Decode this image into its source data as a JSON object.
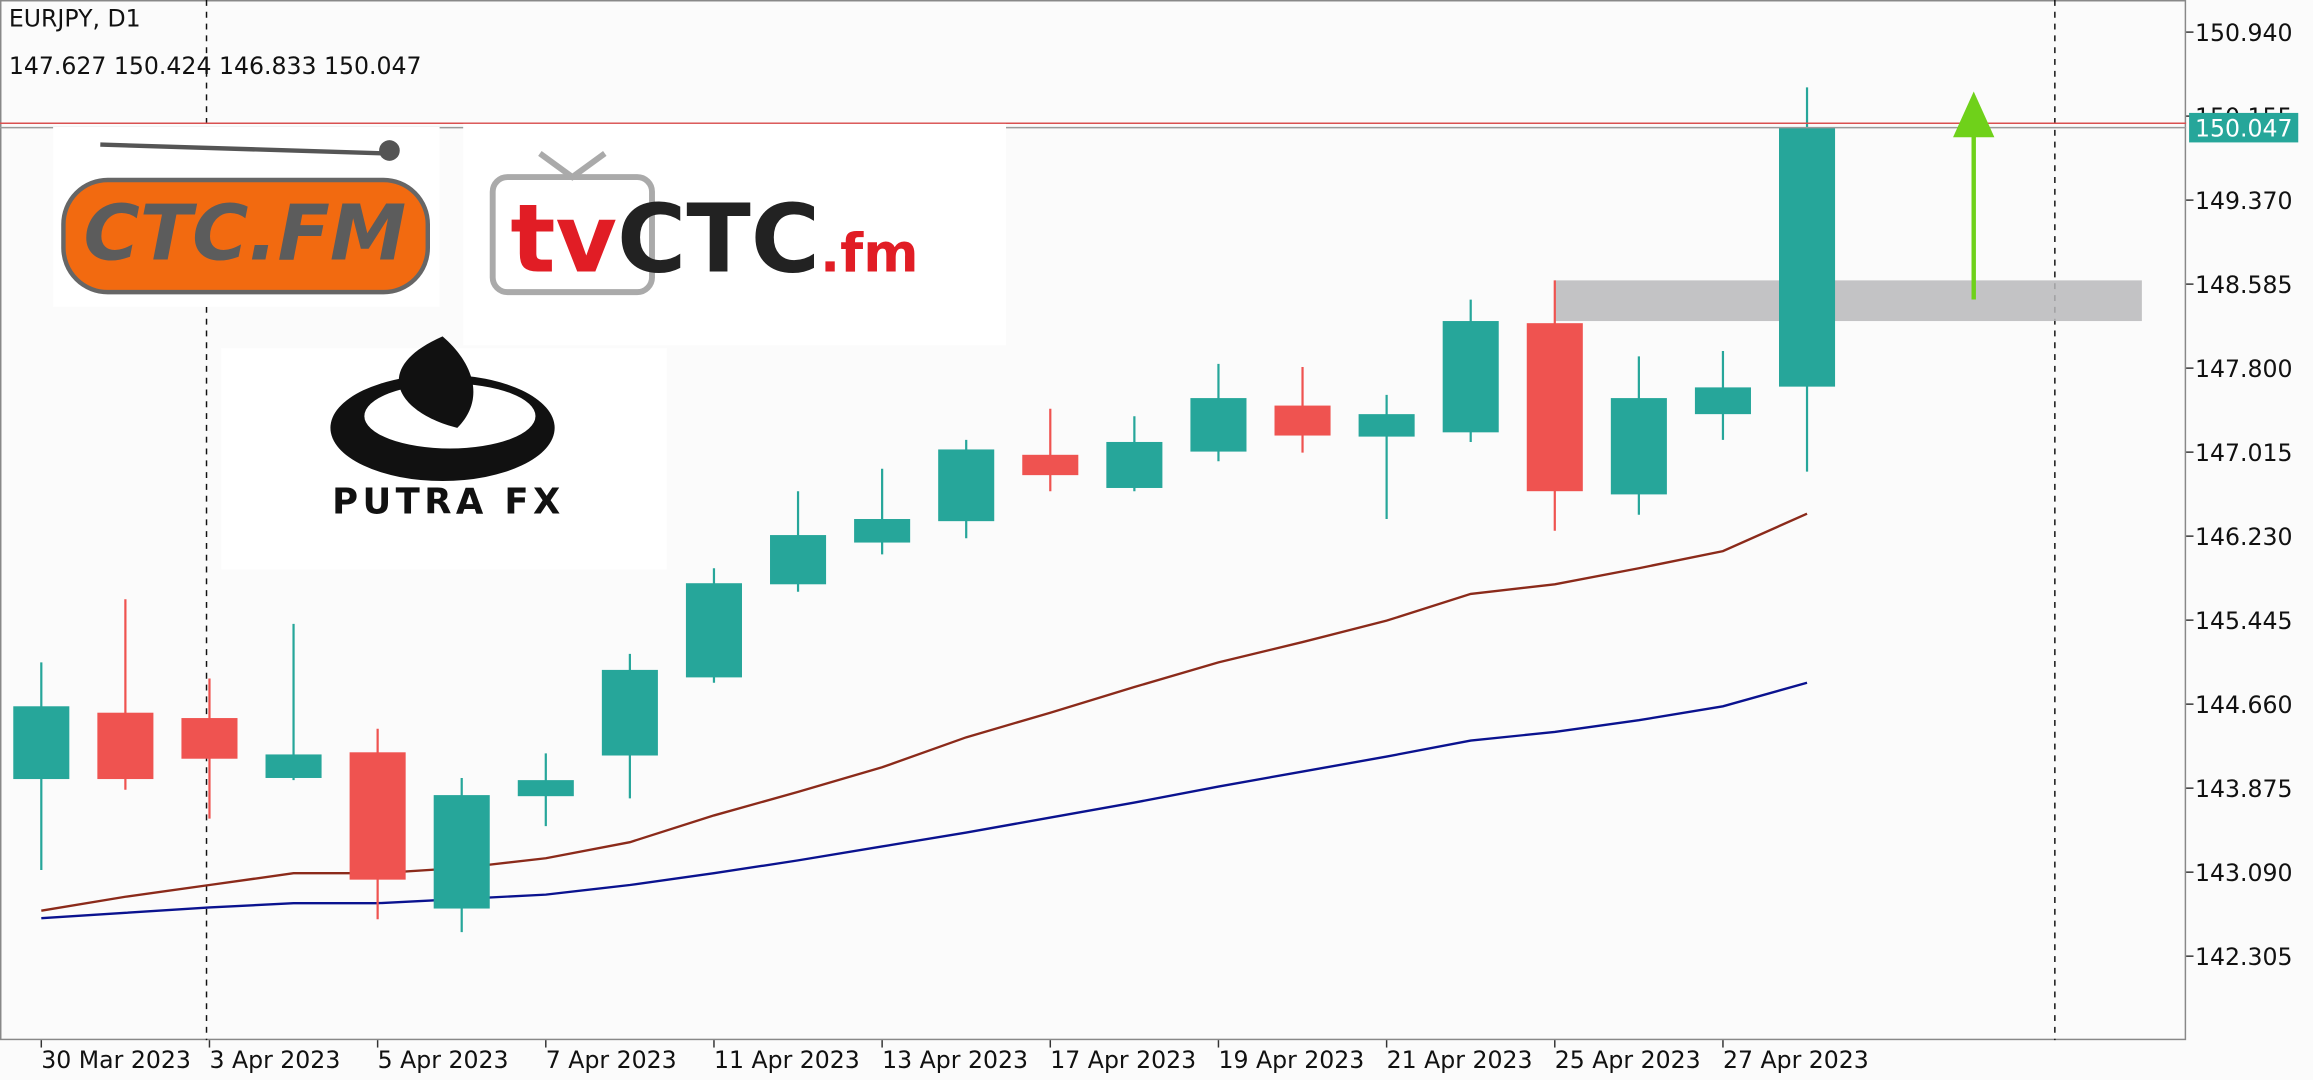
{
  "chart_data": {
    "type": "candlestick",
    "title": "EURJPY, D1",
    "subtitle": "147.627 150.424 146.833 150.047",
    "categories": [
      "30 Mar 2023",
      null,
      "3 Apr 2023",
      null,
      "5 Apr 2023",
      null,
      "7 Apr 2023",
      null,
      "11 Apr 2023",
      null,
      "13 Apr 2023",
      null,
      "17 Apr 2023",
      null,
      "19 Apr 2023",
      null,
      "21 Apr 2023",
      null,
      "25 Apr 2023",
      null,
      "27 Apr 2023",
      null
    ],
    "open": [
      143.96,
      144.58,
      144.53,
      143.97,
      144.21,
      142.75,
      143.8,
      144.18,
      144.91,
      145.78,
      146.17,
      146.37,
      146.99,
      146.68,
      147.02,
      147.45,
      147.16,
      147.2,
      148.22,
      146.62,
      147.37,
      147.627
    ],
    "high": [
      145.05,
      145.64,
      144.9,
      145.41,
      144.43,
      143.97,
      144.2,
      145.13,
      145.93,
      146.65,
      146.86,
      147.13,
      147.42,
      147.35,
      147.84,
      147.81,
      147.55,
      148.44,
      148.62,
      147.91,
      147.96,
      150.424
    ],
    "low": [
      143.11,
      143.86,
      143.59,
      143.95,
      142.65,
      142.53,
      143.52,
      143.78,
      144.86,
      145.71,
      146.06,
      146.21,
      146.65,
      146.65,
      146.93,
      147.01,
      146.39,
      147.11,
      146.28,
      146.43,
      147.13,
      146.833
    ],
    "close": [
      144.64,
      143.96,
      144.15,
      144.19,
      143.02,
      143.81,
      143.95,
      144.98,
      145.79,
      146.24,
      146.39,
      147.04,
      146.8,
      147.11,
      147.52,
      147.17,
      147.37,
      148.24,
      146.65,
      147.52,
      147.62,
      150.047
    ],
    "up_color": "#26a69a",
    "down_color": "#ef5350",
    "moving_averages": [
      {
        "color": "#8b2a1a",
        "values": [
          142.73,
          142.86,
          142.97,
          143.08,
          143.08,
          143.13,
          143.22,
          143.37,
          143.62,
          143.84,
          144.07,
          144.35,
          144.58,
          144.82,
          145.05,
          145.24,
          145.44,
          145.69,
          145.78,
          145.93,
          146.09,
          146.44
        ]
      },
      {
        "color": "#0a128f",
        "values": [
          142.66,
          142.71,
          142.76,
          142.8,
          142.8,
          142.84,
          142.88,
          142.97,
          143.08,
          143.2,
          143.33,
          143.46,
          143.6,
          143.74,
          143.89,
          144.03,
          144.17,
          144.32,
          144.4,
          144.51,
          144.64,
          144.86
        ]
      }
    ],
    "last_price": 150.047,
    "zone": [
      148.24,
      148.62
    ],
    "ylim": [
      141.52,
      151.24
    ],
    "yticks": [
      {
        "value": 150.94,
        "label": "150.940"
      },
      150.155,
      {
        "value": 149.37,
        "label": "149.370"
      },
      148.585,
      {
        "value": 147.8,
        "label": "147.800"
      },
      147.015,
      {
        "value": 146.23,
        "label": "146.230"
      },
      145.445,
      {
        "value": 144.66,
        "label": "144.660"
      },
      143.875,
      {
        "value": 143.09,
        "label": "143.090"
      },
      142.305
    ]
  },
  "watermarks": {
    "ctc_fm": "CTC.FM",
    "tvctc": [
      "tv",
      "CTC",
      ".fm"
    ],
    "putra_fx": "PUTRA FX"
  }
}
